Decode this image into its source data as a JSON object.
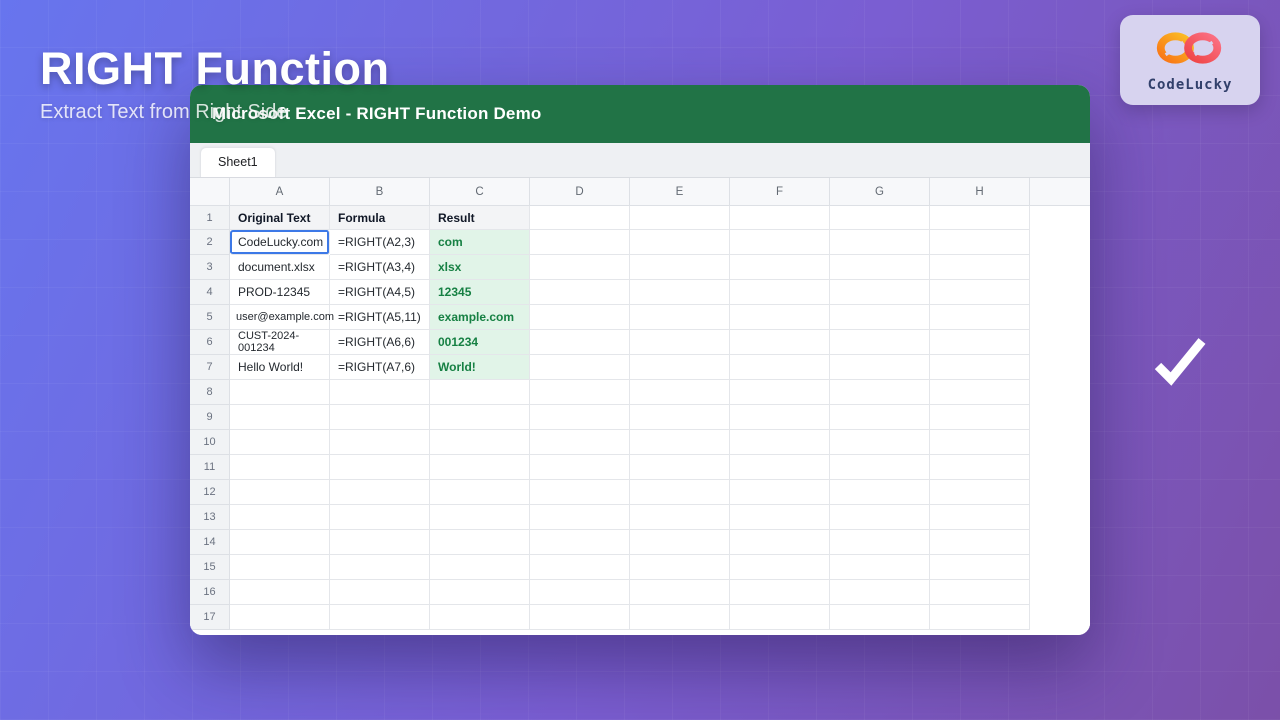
{
  "hero": {
    "title": "RIGHT Function",
    "subtitle": "Extract Text from Right Side"
  },
  "brand": {
    "name": "CodeLucky",
    "logo_icon": "infinity-icon"
  },
  "window": {
    "title": "Microsoft Excel - RIGHT Function Demo",
    "sheet_tab": "Sheet1"
  },
  "spreadsheet": {
    "column_headers": [
      "A",
      "B",
      "C",
      "D",
      "E",
      "F",
      "G",
      "H"
    ],
    "total_rows": 17,
    "selected_cell": "A2",
    "header_labels": {
      "a": "Original Text",
      "b": "Formula",
      "c": "Result"
    },
    "rows": [
      {
        "row": 2,
        "original_text": "CodeLucky.com",
        "formula": "=RIGHT(A2,3)",
        "result": "com"
      },
      {
        "row": 3,
        "original_text": "document.xlsx",
        "formula": "=RIGHT(A3,4)",
        "result": "xlsx"
      },
      {
        "row": 4,
        "original_text": "PROD-12345",
        "formula": "=RIGHT(A4,5)",
        "result": "12345"
      },
      {
        "row": 5,
        "original_text": "user@example.com",
        "formula": "=RIGHT(A5,11)",
        "result": "example.com"
      },
      {
        "row": 6,
        "original_text": "CUST-2024-001234",
        "formula": "=RIGHT(A6,6)",
        "result": "001234"
      },
      {
        "row": 7,
        "original_text": "Hello World!",
        "formula": "=RIGHT(A7,6)",
        "result": "World!"
      }
    ]
  },
  "colors": {
    "titlebar_green": "#217346",
    "result_bg": "#e1f4e8",
    "result_text": "#168043",
    "selection_blue": "#3b78e7",
    "background_gradient_start": "#6775ee",
    "background_gradient_end": "#7b50a9"
  },
  "checkmark_icon": "check-icon"
}
